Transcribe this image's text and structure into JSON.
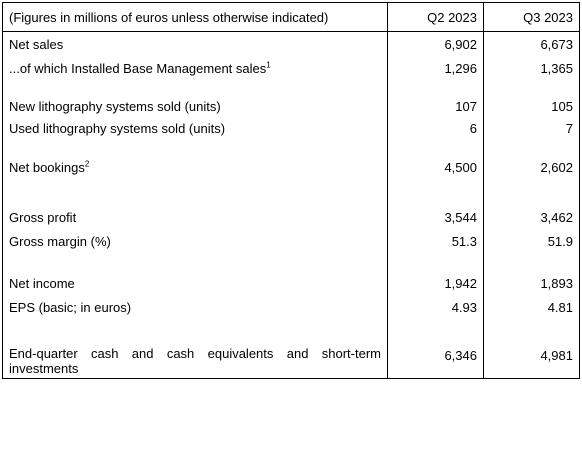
{
  "table": {
    "header": {
      "label": "(Figures in millions of euros unless otherwise indicated)",
      "q2": "Q2 2023",
      "q3": "Q3 2023"
    },
    "rows": [
      {
        "label": "Net sales",
        "sup": "",
        "q2": "6,902",
        "q3": "6,673"
      },
      {
        "label": "...of which Installed Base Management sales",
        "sup": "1",
        "q2": "1,296",
        "q3": "1,365"
      },
      {
        "label": "New lithography systems sold (units)",
        "sup": "",
        "q2": "107",
        "q3": "105"
      },
      {
        "label": "Used lithography systems sold (units)",
        "sup": "",
        "q2": "6",
        "q3": "7"
      },
      {
        "label": "Net bookings",
        "sup": "2",
        "q2": "4,500",
        "q3": "2,602"
      },
      {
        "label": "Gross profit",
        "sup": "",
        "q2": "3,544",
        "q3": "3,462"
      },
      {
        "label": "Gross margin (%)",
        "sup": "",
        "q2": "51.3",
        "q3": "51.9"
      },
      {
        "label": "Net income",
        "sup": "",
        "q2": "1,942",
        "q3": "1,893"
      },
      {
        "label": "EPS (basic; in euros)",
        "sup": "",
        "q2": "4.93",
        "q3": "4.81"
      },
      {
        "label": "End-quarter cash and cash equivalents and short-term investments",
        "sup": "",
        "q2": "6,346",
        "q3": "4,981"
      }
    ]
  }
}
